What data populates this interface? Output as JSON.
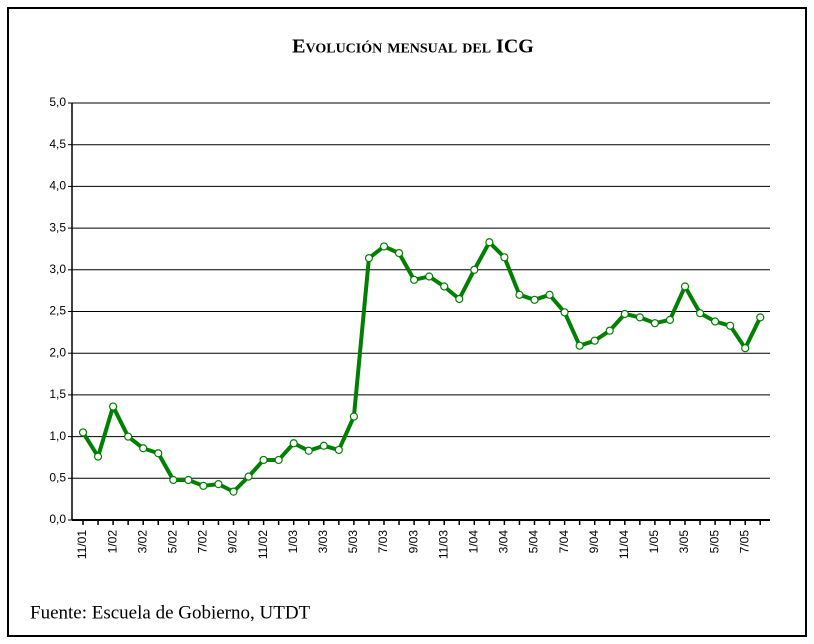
{
  "chart_data": {
    "type": "line",
    "title": "Evolución mensual del ICG",
    "source": "Fuente: Escuela de Gobierno, UTDT",
    "categories": [
      "11/01",
      null,
      "1/02",
      null,
      "3/02",
      null,
      "5/02",
      null,
      "7/02",
      null,
      "9/02",
      null,
      "11/02",
      null,
      "1/03",
      null,
      "3/03",
      null,
      "5/03",
      null,
      "7/03",
      null,
      "9/03",
      null,
      "11/03",
      null,
      "1/04",
      null,
      "3/04",
      null,
      "5/04",
      null,
      "7/04",
      null,
      "9/04",
      null,
      "11/04",
      null,
      "1/05",
      null,
      "3/05",
      null,
      "5/05",
      null,
      "7/05",
      null
    ],
    "series": [
      {
        "name": "ICG",
        "color": "#008000",
        "values": [
          1.05,
          0.76,
          1.36,
          1.0,
          0.86,
          0.8,
          0.48,
          0.48,
          0.41,
          0.43,
          0.34,
          0.52,
          0.72,
          0.72,
          0.92,
          0.83,
          0.89,
          0.84,
          1.24,
          3.14,
          3.28,
          3.2,
          2.88,
          2.92,
          2.8,
          2.65,
          3.0,
          3.33,
          3.15,
          2.7,
          2.64,
          2.7,
          2.49,
          2.09,
          2.15,
          2.27,
          2.47,
          2.43,
          2.36,
          2.4,
          2.8,
          2.48,
          2.38,
          2.33,
          2.06,
          2.43
        ]
      }
    ],
    "ylim": [
      0,
      5
    ],
    "yticks": [
      {
        "value": 0,
        "label": "0,0"
      },
      {
        "value": 0.5,
        "label": "0,5"
      },
      {
        "value": 1,
        "label": "1,0"
      },
      {
        "value": 1.5,
        "label": "1,5"
      },
      {
        "value": 2,
        "label": "2,0"
      },
      {
        "value": 2.5,
        "label": "2,5"
      },
      {
        "value": 3,
        "label": "3,0"
      },
      {
        "value": 3.5,
        "label": "3,5"
      },
      {
        "value": 4,
        "label": "4,0"
      },
      {
        "value": 4.5,
        "label": "4,5"
      },
      {
        "value": 5,
        "label": "5,0"
      }
    ],
    "grid": true
  }
}
